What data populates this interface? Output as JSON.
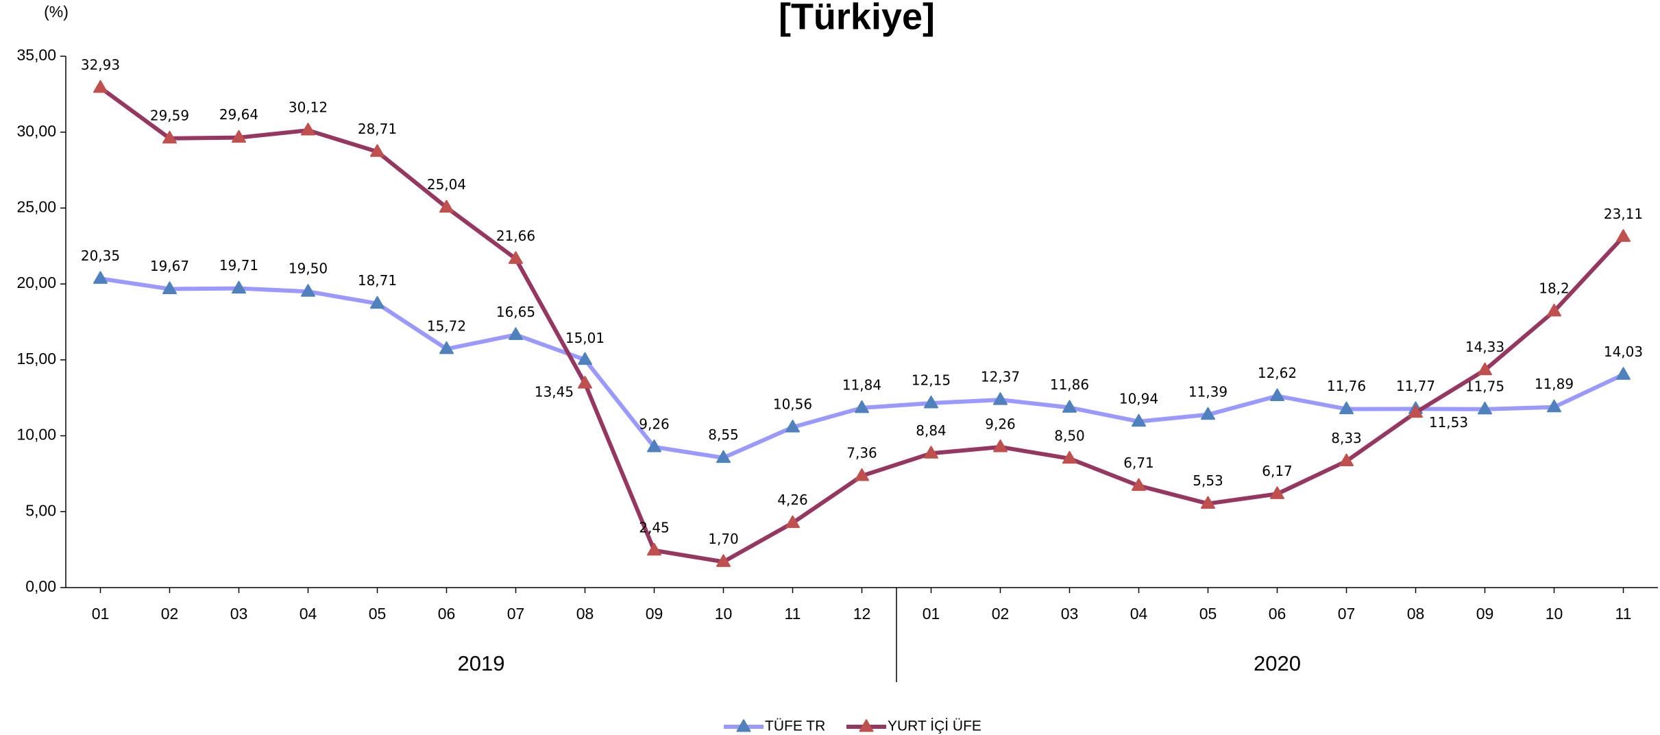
{
  "chart_data": {
    "type": "line",
    "title": "[Türkiye]",
    "y_label": "(%)",
    "category_groups": [
      {
        "label": "2019",
        "categories": [
          "01",
          "02",
          "03",
          "04",
          "05",
          "06",
          "07",
          "08",
          "09",
          "10",
          "11",
          "12"
        ]
      },
      {
        "label": "2020",
        "categories": [
          "01",
          "02",
          "03",
          "04",
          "05",
          "06",
          "07",
          "08",
          "09",
          "10",
          "11"
        ]
      }
    ],
    "ylim": [
      0,
      35
    ],
    "yticks": [
      {
        "value": 0,
        "label": "0,00"
      },
      {
        "value": 5,
        "label": "5,00"
      },
      {
        "value": 10,
        "label": "10,00"
      },
      {
        "value": 15,
        "label": "15,00"
      },
      {
        "value": 20,
        "label": "20,00"
      },
      {
        "value": 25,
        "label": "25,00"
      },
      {
        "value": 30,
        "label": "30,00"
      },
      {
        "value": 35,
        "label": "35,00"
      }
    ],
    "series": [
      {
        "name": "TÜFE TR",
        "color": "#9999ff",
        "marker_color": "#4f81bd",
        "values": [
          20.35,
          19.67,
          19.71,
          19.5,
          18.71,
          15.72,
          16.65,
          15.01,
          9.26,
          8.55,
          10.56,
          11.84,
          12.15,
          12.37,
          11.86,
          10.94,
          11.39,
          12.62,
          11.76,
          11.77,
          11.75,
          11.89,
          14.03
        ],
        "value_labels": [
          "20,35",
          "19,67",
          "19,71",
          "19,50",
          "18,71",
          "15,72",
          "16,65",
          "15,01",
          "9,26",
          "8,55",
          "10,56",
          "11,84",
          "12,15",
          "12,37",
          "11,86",
          "10,94",
          "11,39",
          "12,62",
          "11,76",
          "11,77",
          "11,75",
          "11,89",
          "14,03"
        ]
      },
      {
        "name": "YURT İÇİ ÜFE",
        "color": "#953760",
        "marker_color": "#c0504d",
        "values": [
          32.93,
          29.59,
          29.64,
          30.12,
          28.71,
          25.04,
          21.66,
          13.45,
          2.45,
          1.7,
          4.26,
          7.36,
          8.84,
          9.26,
          8.5,
          6.71,
          5.53,
          6.17,
          8.33,
          11.53,
          14.33,
          18.2,
          23.11
        ],
        "value_labels": [
          "32,93",
          "29,59",
          "29,64",
          "30,12",
          "28,71",
          "25,04",
          "21,66",
          "13,45",
          "2,45",
          "1,70",
          "4,26",
          "7,36",
          "8,84",
          "9,26",
          "8,50",
          "6,71",
          "5,53",
          "6,17",
          "8,33",
          "11,53",
          "14,33",
          "18,2",
          "23,11"
        ]
      }
    ],
    "legend": "bottom"
  }
}
